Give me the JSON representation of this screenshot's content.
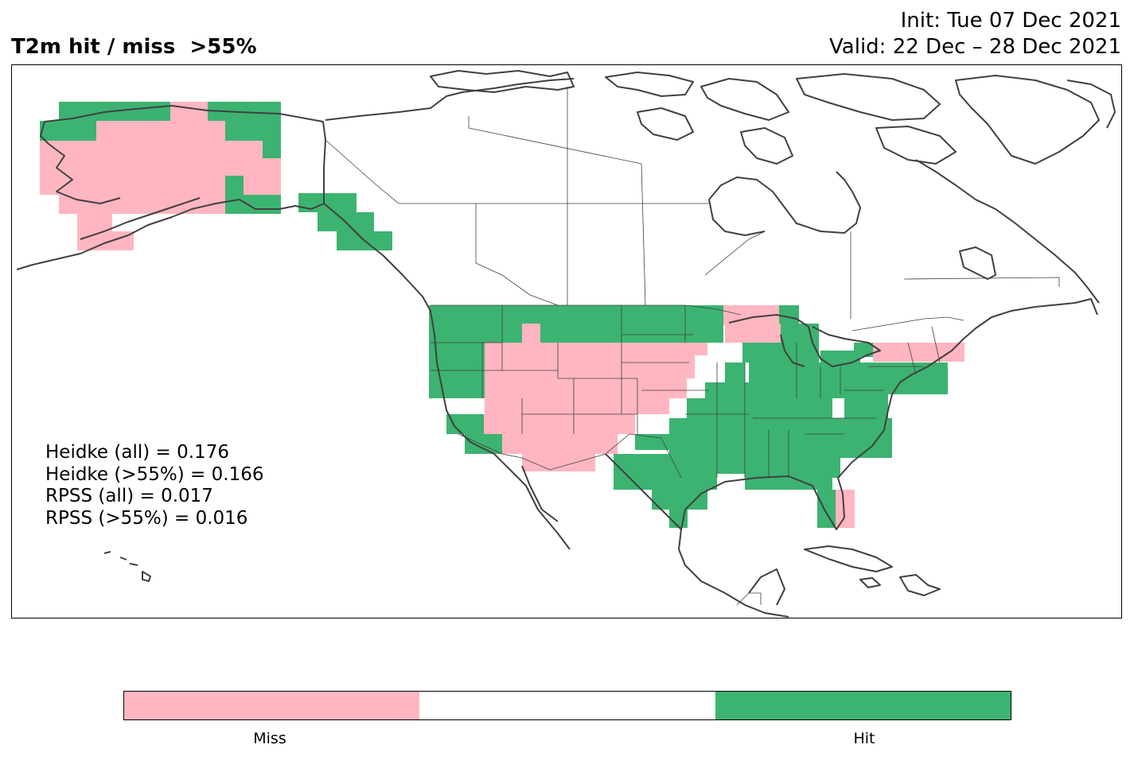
{
  "title": "T2m hit / miss  >55%",
  "init": "Init: Tue 07 Dec 2021",
  "valid": "Valid: 22 Dec – 28 Dec 2021",
  "colors": {
    "miss": "#ffb6c1",
    "hit": "#3cb371",
    "neutral": "#ffffff",
    "coast": "#404040"
  },
  "stats": [
    "Heidke (all) = 0.176",
    "Heidke (>55%) = 0.166",
    "RPSS (all) = 0.017",
    "RPSS (>55%) = 0.016"
  ],
  "legend": {
    "miss": "Miss",
    "hit": "Hit"
  }
}
